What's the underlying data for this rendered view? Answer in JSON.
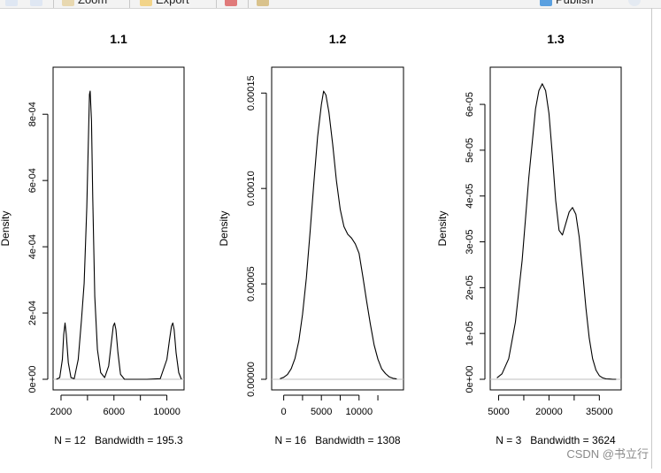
{
  "toolbar": {
    "zoom_label": "Zoom",
    "export_label": "Export",
    "publish_label": "Publish"
  },
  "watermark": "CSDN @书立行",
  "chart_data": [
    {
      "type": "line",
      "title": "1.1",
      "ylabel": "Density",
      "xlabel": "N = 12   Bandwidth = 195.3",
      "xlim": [
        1400,
        11300
      ],
      "ylim": [
        0,
        0.00091
      ],
      "xticks": [
        2000,
        6000,
        10000
      ],
      "xtick_labels": [
        "2000",
        "6000",
        "10000"
      ],
      "yticks": [
        0,
        0.0002,
        0.0004,
        0.0006,
        0.0008
      ],
      "ytick_labels": [
        "0e+00",
        "2e-04",
        "4e-04",
        "6e-04",
        "8e-04"
      ],
      "baseline": true,
      "series": [
        {
          "x": [
            1650,
            1900,
            2100,
            2200,
            2300,
            2400,
            2550,
            2750,
            3000,
            3300,
            3550,
            3750,
            3950,
            4100,
            4150,
            4200,
            4300,
            4400,
            4550,
            4750,
            5000,
            5300,
            5600,
            5800,
            5950,
            6050,
            6150,
            6300,
            6500,
            6800,
            7500,
            8500,
            9500,
            10000,
            10200,
            10350,
            10450,
            10550,
            10700,
            10900,
            11100
          ],
          "y": [
            0,
            5e-06,
            6e-05,
            0.000135,
            0.00017,
            0.000135,
            5e-05,
            5e-06,
            2e-06,
            6e-05,
            0.00018,
            0.00029,
            0.00052,
            0.00078,
            0.00086,
            0.00087,
            0.00078,
            0.00055,
            0.00025,
            9e-05,
            2e-05,
            5e-06,
            4e-05,
            0.00011,
            0.00016,
            0.00017,
            0.00015,
            8e-05,
            1.5e-05,
            0,
            0,
            0,
            2e-06,
            6e-05,
            0.00012,
            0.00016,
            0.00017,
            0.00015,
            8e-05,
            2e-05,
            0
          ]
        }
      ]
    },
    {
      "type": "line",
      "title": "1.2",
      "ylabel": "Density",
      "xlabel": "N = 16   Bandwidth = 1308",
      "xlim": [
        -1600,
        15900
      ],
      "ylim": [
        0,
        0.000158
      ],
      "xticks": [
        0,
        5000,
        10000
      ],
      "xtick_labels": [
        "0",
        "5000",
        "10000"
      ],
      "yticks": [
        0,
        5e-05,
        0.0001,
        0.00015
      ],
      "ytick_labels": [
        "0.00000",
        "0.00005",
        "0.00010",
        "0.00015"
      ],
      "baseline": true,
      "series": [
        {
          "x": [
            -500,
            0,
            500,
            1000,
            1500,
            2000,
            2500,
            3000,
            3500,
            4000,
            4500,
            5000,
            5300,
            5600,
            6000,
            6500,
            7000,
            7500,
            8000,
            8500,
            9000,
            9500,
            10000,
            10500,
            11000,
            11500,
            12000,
            12500,
            13000,
            13500,
            14000,
            14500,
            15000
          ],
          "y": [
            3e-07,
            1e-06,
            2.5e-06,
            5.5e-06,
            1.1e-05,
            2e-05,
            3.4e-05,
            5.3e-05,
            7.7e-05,
            0.000103,
            0.000127,
            0.000144,
            0.000151,
            0.000149,
            0.00014,
            0.000123,
            0.000104,
            8.9e-05,
            8e-05,
            7.6e-05,
            7.4e-05,
            7.1e-05,
            6.6e-05,
            5.4e-05,
            4.1e-05,
            2.9e-05,
            1.8e-05,
            1.05e-05,
            5.5e-06,
            3e-06,
            1.3e-06,
            5e-07,
            2e-07
          ]
        }
      ]
    },
    {
      "type": "line",
      "title": "1.3",
      "ylabel": "Density",
      "xlabel": "N = 3   Bandwidth = 3624",
      "xlim": [
        2500,
        41500
      ],
      "ylim": [
        0,
        6.58e-05
      ],
      "xticks": [
        5000,
        20000,
        35000
      ],
      "xtick_labels": [
        "5000",
        "20000",
        "35000"
      ],
      "yticks": [
        0,
        1e-05,
        2e-05,
        3e-05,
        4e-05,
        5e-05,
        6e-05
      ],
      "ytick_labels": [
        "0e+00",
        "1e-05",
        "2e-05",
        "3e-05",
        "4e-05",
        "5e-05",
        "6e-05"
      ],
      "baseline": true,
      "series": [
        {
          "x": [
            4500,
            6000,
            8000,
            10000,
            12000,
            14000,
            16000,
            17000,
            18000,
            19000,
            20000,
            21000,
            22000,
            23000,
            24000,
            25000,
            26000,
            27000,
            28000,
            29000,
            30000,
            31000,
            32000,
            33000,
            34000,
            35000,
            36000,
            37000,
            38000,
            39000,
            40000
          ],
          "y": [
            3e-07,
            1.2e-06,
            4.5e-06,
            1.25e-05,
            2.6e-05,
            4.4e-05,
            5.9e-05,
            6.3e-05,
            6.45e-05,
            6.3e-05,
            5.8e-05,
            4.9e-05,
            3.9e-05,
            3.25e-05,
            3.15e-05,
            3.4e-05,
            3.65e-05,
            3.75e-05,
            3.6e-05,
            3.1e-05,
            2.35e-05,
            1.55e-05,
            9e-06,
            4.5e-06,
            2e-06,
            8e-07,
            3e-07,
            1e-07,
            5e-08,
            0,
            0
          ]
        }
      ]
    }
  ]
}
